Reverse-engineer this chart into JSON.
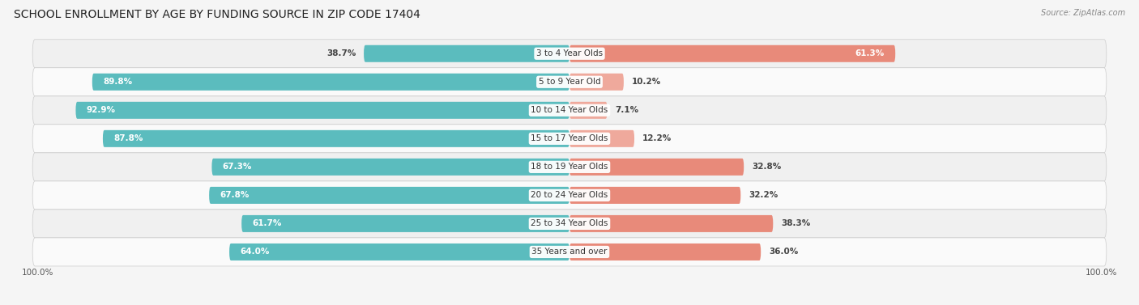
{
  "title": "SCHOOL ENROLLMENT BY AGE BY FUNDING SOURCE IN ZIP CODE 17404",
  "source": "Source: ZipAtlas.com",
  "categories": [
    "3 to 4 Year Olds",
    "5 to 9 Year Old",
    "10 to 14 Year Olds",
    "15 to 17 Year Olds",
    "18 to 19 Year Olds",
    "20 to 24 Year Olds",
    "25 to 34 Year Olds",
    "35 Years and over"
  ],
  "public_values": [
    38.7,
    89.8,
    92.9,
    87.8,
    67.3,
    67.8,
    61.7,
    64.0
  ],
  "private_values": [
    61.3,
    10.2,
    7.1,
    12.2,
    32.8,
    32.2,
    38.3,
    36.0
  ],
  "public_color": "#5BBCBE",
  "private_color": "#E88A7A",
  "private_color_light": "#EFA99C",
  "row_bg_even": "#f0f0f0",
  "row_bg_odd": "#fafafa",
  "bg_color": "#f5f5f5",
  "title_fontsize": 10,
  "label_fontsize": 7.5,
  "value_fontsize": 7.5,
  "axis_label_left": "100.0%",
  "axis_label_right": "100.0%"
}
